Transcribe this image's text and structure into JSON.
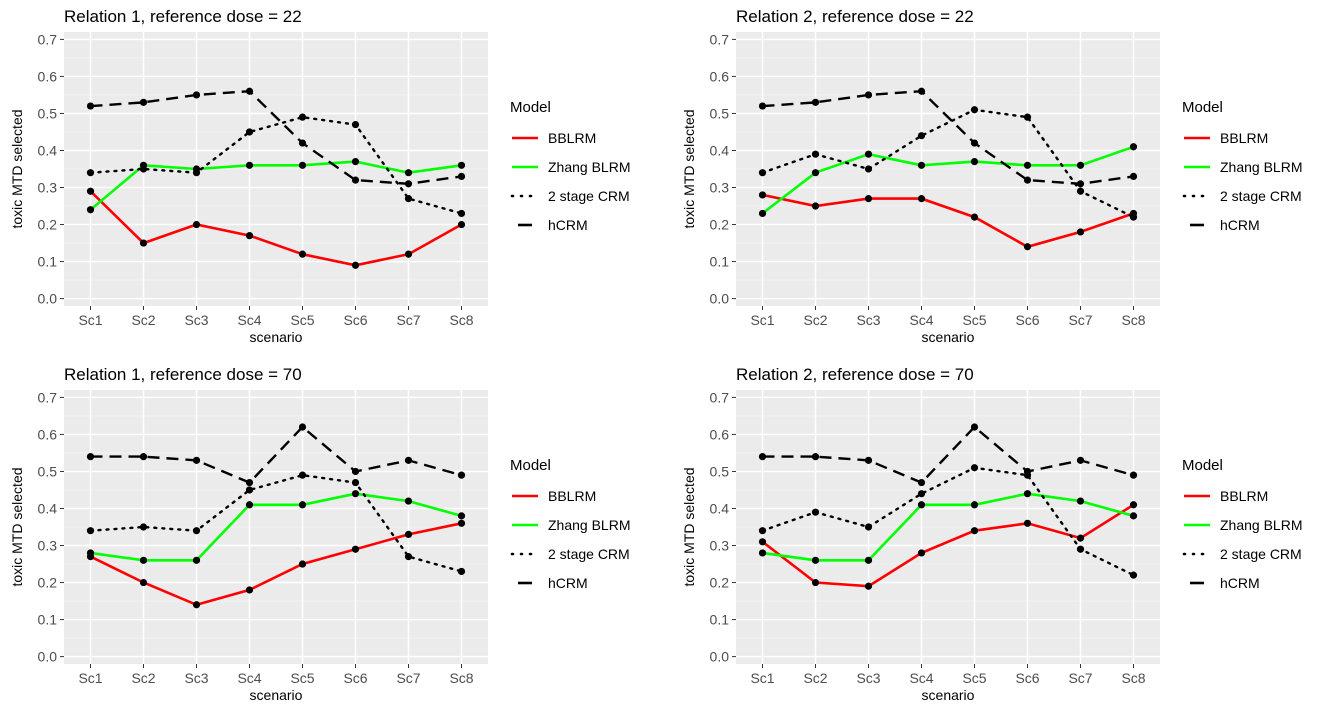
{
  "chart_data": [
    {
      "type": "line",
      "title": "Relation 1, reference dose = 22",
      "xlabel": "scenario",
      "ylabel": "toxic MTD selected",
      "categories": [
        "Sc1",
        "Sc2",
        "Sc3",
        "Sc4",
        "Sc5",
        "Sc6",
        "Sc7",
        "Sc8"
      ],
      "ylim": [
        -0.02,
        0.72
      ],
      "yticks": [
        "0.0",
        "0.1",
        "0.2",
        "0.3",
        "0.4",
        "0.5",
        "0.6",
        "0.7"
      ],
      "grid": true,
      "legend": {
        "title": "Model",
        "placement": "right"
      },
      "series": [
        {
          "name": "BBLRM",
          "color": "#ff0000",
          "linetype": "solid",
          "values": [
            0.29,
            0.15,
            0.2,
            0.17,
            0.12,
            0.09,
            0.12,
            0.2
          ]
        },
        {
          "name": "Zhang BLRM",
          "color": "#00ff00",
          "linetype": "solid",
          "values": [
            0.24,
            0.36,
            0.35,
            0.36,
            0.36,
            0.37,
            0.34,
            0.36
          ]
        },
        {
          "name": "2 stage CRM",
          "color": "#000000",
          "linetype": "dotted",
          "values": [
            0.34,
            0.35,
            0.34,
            0.45,
            0.49,
            0.47,
            0.27,
            0.23
          ]
        },
        {
          "name": "hCRM",
          "color": "#000000",
          "linetype": "dashed",
          "values": [
            0.52,
            0.53,
            0.55,
            0.56,
            0.42,
            0.32,
            0.31,
            0.33
          ]
        }
      ]
    },
    {
      "type": "line",
      "title": "Relation 2, reference dose = 22",
      "xlabel": "scenario",
      "ylabel": "toxic MTD selected",
      "categories": [
        "Sc1",
        "Sc2",
        "Sc3",
        "Sc4",
        "Sc5",
        "Sc6",
        "Sc7",
        "Sc8"
      ],
      "ylim": [
        -0.02,
        0.72
      ],
      "yticks": [
        "0.0",
        "0.1",
        "0.2",
        "0.3",
        "0.4",
        "0.5",
        "0.6",
        "0.7"
      ],
      "grid": true,
      "legend": {
        "title": "Model",
        "placement": "right"
      },
      "series": [
        {
          "name": "BBLRM",
          "color": "#ff0000",
          "linetype": "solid",
          "values": [
            0.28,
            0.25,
            0.27,
            0.27,
            0.22,
            0.14,
            0.18,
            0.23
          ]
        },
        {
          "name": "Zhang BLRM",
          "color": "#00ff00",
          "linetype": "solid",
          "values": [
            0.23,
            0.34,
            0.39,
            0.36,
            0.37,
            0.36,
            0.36,
            0.41
          ]
        },
        {
          "name": "2 stage CRM",
          "color": "#000000",
          "linetype": "dotted",
          "values": [
            0.34,
            0.39,
            0.35,
            0.44,
            0.51,
            0.49,
            0.29,
            0.22
          ]
        },
        {
          "name": "hCRM",
          "color": "#000000",
          "linetype": "dashed",
          "values": [
            0.52,
            0.53,
            0.55,
            0.56,
            0.42,
            0.32,
            0.31,
            0.33
          ]
        }
      ]
    },
    {
      "type": "line",
      "title": "Relation 1, reference dose = 70",
      "xlabel": "scenario",
      "ylabel": "toxic MTD selected",
      "categories": [
        "Sc1",
        "Sc2",
        "Sc3",
        "Sc4",
        "Sc5",
        "Sc6",
        "Sc7",
        "Sc8"
      ],
      "ylim": [
        -0.02,
        0.72
      ],
      "yticks": [
        "0.0",
        "0.1",
        "0.2",
        "0.3",
        "0.4",
        "0.5",
        "0.6",
        "0.7"
      ],
      "grid": true,
      "legend": {
        "title": "Model",
        "placement": "right"
      },
      "series": [
        {
          "name": "BBLRM",
          "color": "#ff0000",
          "linetype": "solid",
          "values": [
            0.27,
            0.2,
            0.14,
            0.18,
            0.25,
            0.29,
            0.33,
            0.36
          ]
        },
        {
          "name": "Zhang BLRM",
          "color": "#00ff00",
          "linetype": "solid",
          "values": [
            0.28,
            0.26,
            0.26,
            0.41,
            0.41,
            0.44,
            0.42,
            0.38
          ]
        },
        {
          "name": "2 stage CRM",
          "color": "#000000",
          "linetype": "dotted",
          "values": [
            0.34,
            0.35,
            0.34,
            0.45,
            0.49,
            0.47,
            0.27,
            0.23
          ]
        },
        {
          "name": "hCRM",
          "color": "#000000",
          "linetype": "dashed",
          "values": [
            0.54,
            0.54,
            0.53,
            0.47,
            0.62,
            0.5,
            0.53,
            0.49
          ]
        }
      ]
    },
    {
      "type": "line",
      "title": "Relation 2, reference dose = 70",
      "xlabel": "scenario",
      "ylabel": "toxic MTD selected",
      "categories": [
        "Sc1",
        "Sc2",
        "Sc3",
        "Sc4",
        "Sc5",
        "Sc6",
        "Sc7",
        "Sc8"
      ],
      "ylim": [
        -0.02,
        0.72
      ],
      "yticks": [
        "0.0",
        "0.1",
        "0.2",
        "0.3",
        "0.4",
        "0.5",
        "0.6",
        "0.7"
      ],
      "grid": true,
      "legend": {
        "title": "Model",
        "placement": "right"
      },
      "series": [
        {
          "name": "BBLRM",
          "color": "#ff0000",
          "linetype": "solid",
          "values": [
            0.31,
            0.2,
            0.19,
            0.28,
            0.34,
            0.36,
            0.32,
            0.41
          ]
        },
        {
          "name": "Zhang BLRM",
          "color": "#00ff00",
          "linetype": "solid",
          "values": [
            0.28,
            0.26,
            0.26,
            0.41,
            0.41,
            0.44,
            0.42,
            0.38
          ]
        },
        {
          "name": "2 stage CRM",
          "color": "#000000",
          "linetype": "dotted",
          "values": [
            0.34,
            0.39,
            0.35,
            0.44,
            0.51,
            0.49,
            0.29,
            0.22
          ]
        },
        {
          "name": "hCRM",
          "color": "#000000",
          "linetype": "dashed",
          "values": [
            0.54,
            0.54,
            0.53,
            0.47,
            0.62,
            0.5,
            0.53,
            0.49
          ]
        }
      ]
    }
  ]
}
